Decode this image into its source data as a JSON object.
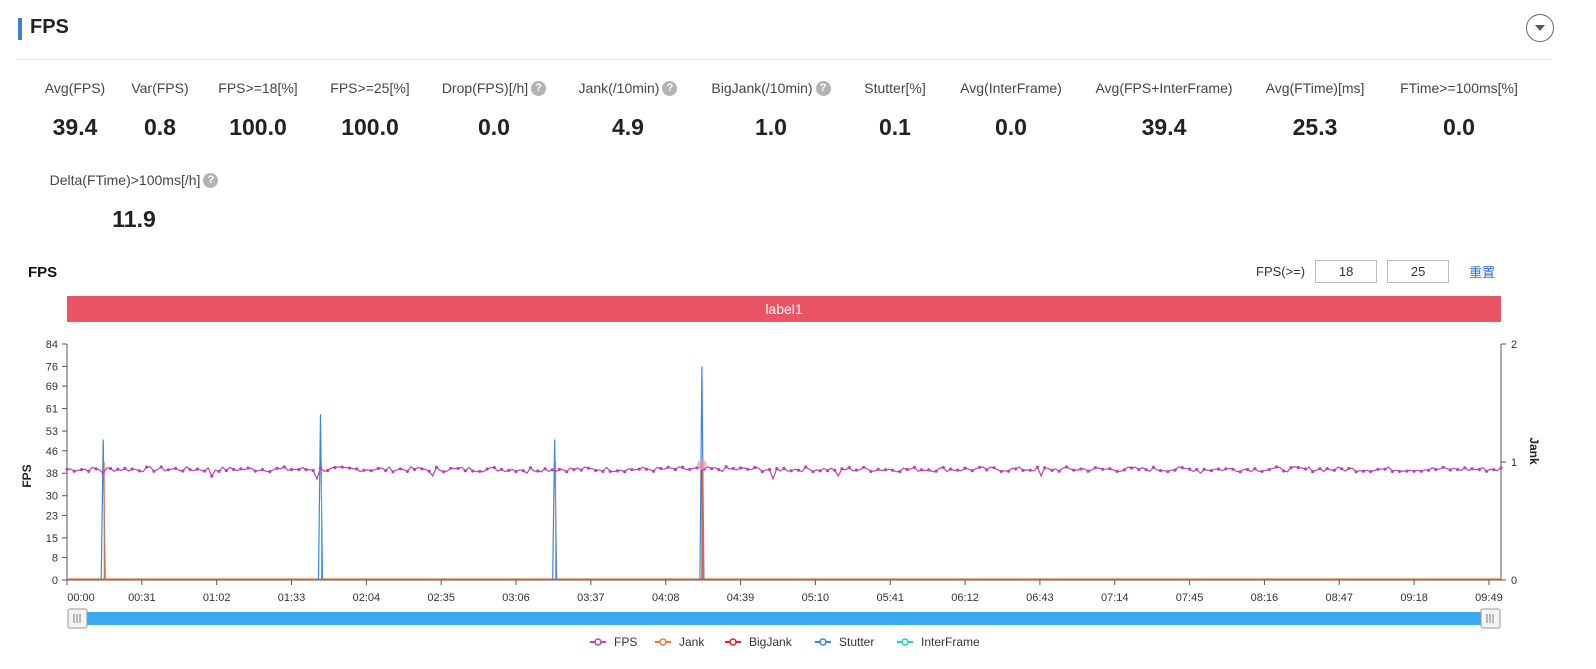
{
  "header": {
    "title": "FPS"
  },
  "metrics": [
    {
      "label": "Avg(FPS)",
      "value": "39.4",
      "help": false
    },
    {
      "label": "Var(FPS)",
      "value": "0.8",
      "help": false
    },
    {
      "label": "FPS>=18[%]",
      "value": "100.0",
      "help": false
    },
    {
      "label": "FPS>=25[%]",
      "value": "100.0",
      "help": false
    },
    {
      "label": "Drop(FPS)[/h]",
      "value": "0.0",
      "help": true
    },
    {
      "label": "Jank(/10min)",
      "value": "4.9",
      "help": true
    },
    {
      "label": "BigJank(/10min)",
      "value": "1.0",
      "help": true
    },
    {
      "label": "Stutter[%]",
      "value": "0.1",
      "help": false
    },
    {
      "label": "Avg(InterFrame)",
      "value": "0.0",
      "help": false
    },
    {
      "label": "Avg(FPS+InterFrame)",
      "value": "39.4",
      "help": false
    },
    {
      "label": "Avg(FTime)[ms]",
      "value": "25.3",
      "help": false
    },
    {
      "label": "FTime>=100ms[%]",
      "value": "0.0",
      "help": false
    },
    {
      "label": "Delta(FTime)>100ms[/h]",
      "value": "11.9",
      "help": true
    }
  ],
  "chart_section": {
    "title": "FPS",
    "filter_label": "FPS(>=)",
    "filter_value_1": "18",
    "filter_value_2": "25",
    "reset_label": "重置",
    "label_band": "label1"
  },
  "chart_data": {
    "type": "line",
    "title": "FPS",
    "ylabel": "FPS",
    "y2label": "Jank",
    "ylim": [
      0,
      84
    ],
    "y2lim": [
      0,
      2
    ],
    "yticks": [
      "0",
      "8",
      "15",
      "23",
      "30",
      "38",
      "46",
      "53",
      "61",
      "69",
      "76",
      "84"
    ],
    "y2ticks": [
      "0",
      "1",
      "2"
    ],
    "xlim_seconds": [
      0,
      594
    ],
    "xticks": [
      "00:00",
      "00:31",
      "01:02",
      "01:33",
      "02:04",
      "02:35",
      "03:06",
      "03:37",
      "04:08",
      "04:39",
      "05:10",
      "05:41",
      "06:12",
      "06:43",
      "07:14",
      "07:45",
      "08:16",
      "08:47",
      "09:18",
      "09:49"
    ],
    "series": [
      {
        "name": "FPS",
        "color": "#b844b8",
        "axis": "left",
        "baseline": 39.4,
        "variation": 0.9,
        "dips": [
          [
            15,
            38
          ],
          [
            60,
            37
          ],
          [
            103,
            36
          ],
          [
            152,
            37
          ],
          [
            190,
            38
          ],
          [
            292,
            36
          ],
          [
            320,
            37
          ],
          [
            404,
            37
          ],
          [
            469,
            38
          ]
        ]
      },
      {
        "name": "Jank",
        "color": "#f0772d",
        "axis": "right",
        "values_at": [
          [
            15,
            1
          ],
          [
            105,
            1
          ],
          [
            202,
            1
          ],
          [
            263,
            1
          ]
        ]
      },
      {
        "name": "BigJank",
        "color": "#e0202a",
        "axis": "right",
        "values_at": [
          [
            263,
            1
          ]
        ]
      },
      {
        "name": "Stutter",
        "color": "#3b86e0",
        "axis": "left",
        "spikes": [
          [
            15,
            50
          ],
          [
            105,
            59
          ],
          [
            202,
            50
          ],
          [
            263,
            76
          ]
        ]
      },
      {
        "name": "InterFrame",
        "color": "#2ec9c0",
        "axis": "right",
        "values_at": []
      }
    ],
    "legend_position": "bottom-center",
    "grid": false
  },
  "colors": {
    "accent": "#3c7be0",
    "label_band": "#ea5566",
    "slider": "#3aaaf0"
  }
}
